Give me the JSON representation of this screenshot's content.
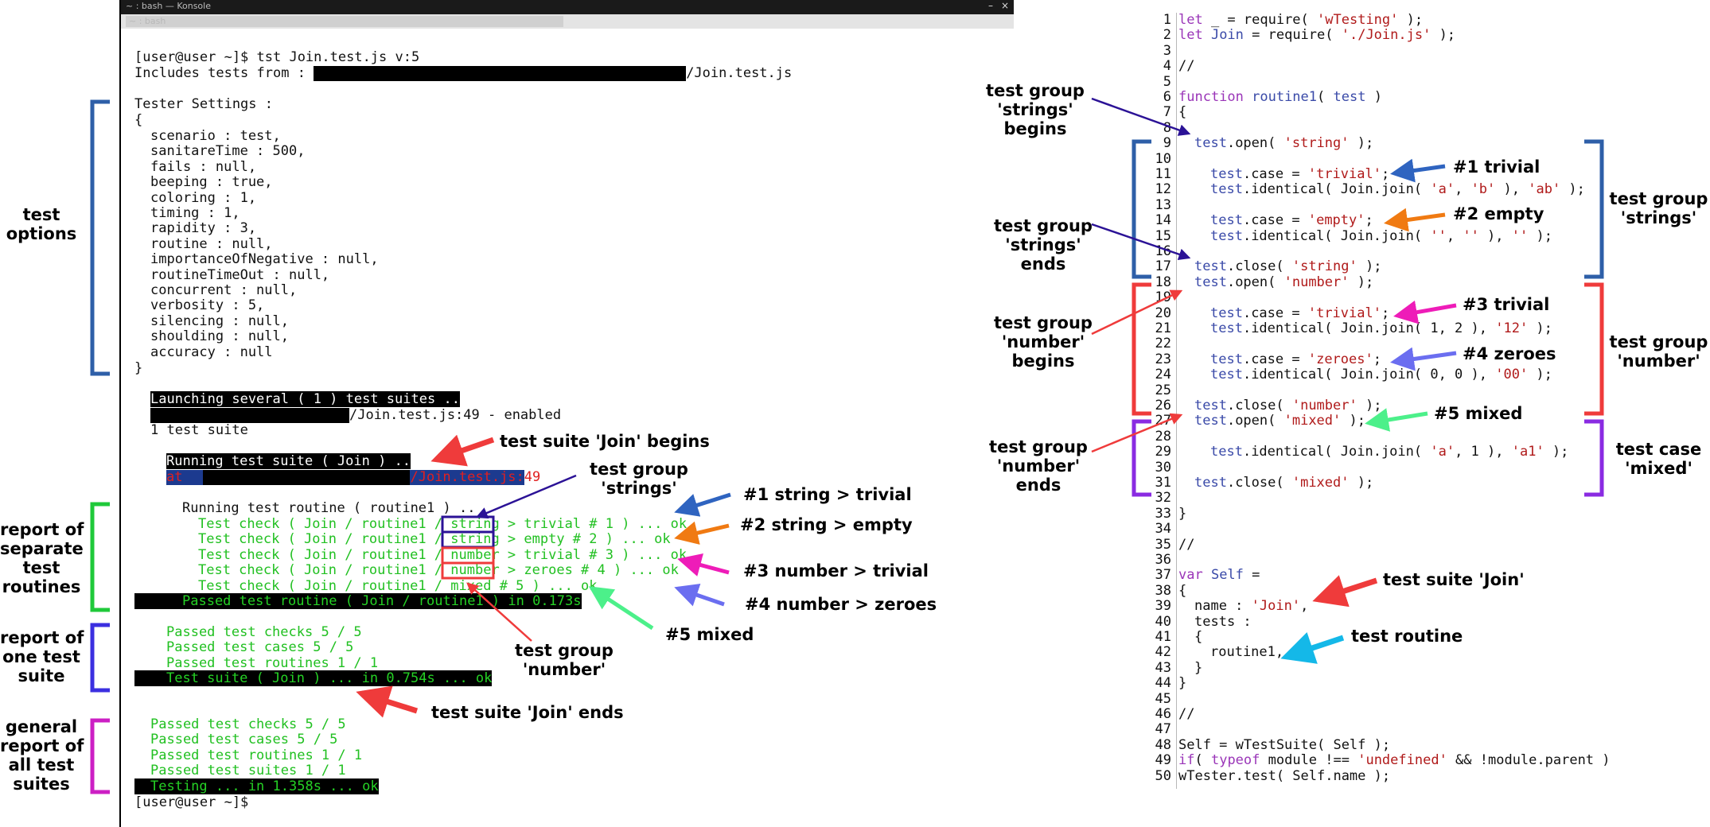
{
  "terminal": {
    "window_title": "~ : bash — Konsole",
    "tab_title": "~ : bash",
    "prompt_cmd": "[user@user ~]$ tst Join.test.js v:5",
    "includes_prefix": "Includes tests from :",
    "includes_suffix": "/Join.test.js",
    "settings_header": "Tester Settings :",
    "open_brace": "{",
    "close_brace": "}",
    "settings": [
      "scenario : test,",
      "sanitareTime : 500,",
      "fails : null,",
      "beeping : true,",
      "coloring : 1,",
      "timing : 1,",
      "rapidity : 3,",
      "routine : null,",
      "importanceOfNegative : null,",
      "routineTimeOut : null,",
      "concurrent : null,",
      "verbosity : 5,",
      "silencing : null,",
      "shoulding : null,",
      "accuracy : null"
    ],
    "launching": "Launching several ( 1 ) test suites ..",
    "enabled_suffix": "/Join.test.js:49 - enabled",
    "one_suite": "1 test suite",
    "running_suite": "Running test suite ( Join ) ..",
    "at_prefix": "at",
    "at_suffix": "/Join.test.js:49",
    "running_routine": "Running test routine ( routine1 ) ..",
    "checks": [
      "Test check ( Join / routine1 / string > trivial # 1 ) ... ok",
      "Test check ( Join / routine1 / string > empty # 2 ) ... ok",
      "Test check ( Join / routine1 / number > trivial # 3 ) ... ok",
      "Test check ( Join / routine1 / number > zeroes # 4 ) ... ok",
      "Test check ( Join / routine1 / mixed # 5 ) ... ok"
    ],
    "passed_routine": "Passed test routine ( Join / routine1 ) in 0.173s",
    "suite_report": [
      "Passed test checks 5 / 5",
      "Passed test cases 5 / 5",
      "Passed test routines 1 / 1"
    ],
    "suite_done": "Test suite ( Join ) ... in 0.754s ... ok",
    "general_report": [
      "Passed test checks 5 / 5",
      "Passed test cases 5 / 5",
      "Passed test routines 1 / 1",
      "Passed test suites 1 / 1"
    ],
    "testing_done": "Testing ... in 1.358s ... ok",
    "final_prompt": "[user@user ~]$"
  },
  "left_labels": {
    "test_options": "test\noptions",
    "separate_routines": "report of\nseparate\ntest\nroutines",
    "one_suite": "report of\none test\nsuite",
    "all_suites": "general\nreport of\nall test\nsuites"
  },
  "mid_labels": {
    "suite_begins": "test suite 'Join' begins",
    "group_strings": "test group\n'strings'",
    "c1": "#1 string > trivial",
    "c2": "#2 string > empty",
    "c3": "#3 number > trivial",
    "c4": "#4 number > zeroes",
    "c5": "#5 mixed",
    "group_number": "test group\n'number'",
    "suite_ends": "test suite 'Join' ends"
  },
  "code": {
    "line_numbers": [
      "1",
      "2",
      "3",
      "4",
      "5",
      "6",
      "7",
      "8",
      "9",
      "10",
      "11",
      "12",
      "13",
      "14",
      "15",
      "16",
      "17",
      "18",
      "19",
      "20",
      "21",
      "22",
      "23",
      "24",
      "25",
      "26",
      "27",
      "28",
      "29",
      "30",
      "31",
      "32",
      "33",
      "34",
      "35",
      "36",
      "37",
      "38",
      "39",
      "40",
      "41",
      "42",
      "43",
      "44",
      "45",
      "46",
      "47",
      "48",
      "49",
      "50"
    ],
    "l1": [
      "let",
      " _ = require( ",
      "'wTesting'",
      " );"
    ],
    "l2": [
      "let ",
      "Join",
      " = require( ",
      "'./Join.js'",
      " );"
    ],
    "l4": "//",
    "l6": [
      "function ",
      "routine1",
      "( ",
      "test",
      " )"
    ],
    "l7": "{",
    "l9": [
      "test",
      ".open( ",
      "'string'",
      " );"
    ],
    "l11": [
      "test",
      ".case = ",
      "'trivial'",
      ";"
    ],
    "l12": [
      "test",
      ".identical( Join.join( ",
      "'a'",
      ", ",
      "'b'",
      " ), ",
      "'ab'",
      " );"
    ],
    "l14": [
      "test",
      ".case = ",
      "'empty'",
      ";"
    ],
    "l15": [
      "test",
      ".identical( Join.join( ",
      "''",
      ", ",
      "''",
      " ), ",
      "''",
      " );"
    ],
    "l17": [
      "test",
      ".close( ",
      "'string'",
      " );"
    ],
    "l18": [
      "test",
      ".open( ",
      "'number'",
      " );"
    ],
    "l20": [
      "test",
      ".case = ",
      "'trivial'",
      ";"
    ],
    "l21": [
      "test",
      ".identical( Join.join( 1, 2 ), ",
      "'12'",
      " );"
    ],
    "l23": [
      "test",
      ".case = ",
      "'zeroes'",
      ";"
    ],
    "l24": [
      "test",
      ".identical( Join.join( 0, 0 ), ",
      "'00'",
      " );"
    ],
    "l26": [
      "test",
      ".close( ",
      "'number'",
      " );"
    ],
    "l27": [
      "test",
      ".open( ",
      "'mixed'",
      " );"
    ],
    "l29": [
      "test",
      ".identical( Join.join( ",
      "'a'",
      ", 1 ), ",
      "'a1'",
      " );"
    ],
    "l31": [
      "test",
      ".close( ",
      "'mixed'",
      " );"
    ],
    "l33": "}",
    "l35": "//",
    "l37": [
      "var ",
      "Self",
      " ="
    ],
    "l38": "{",
    "l39": [
      "name : ",
      "'Join'",
      ","
    ],
    "l40": "tests :",
    "l41": "{",
    "l42": "routine1,",
    "l43": "}",
    "l44": "}",
    "l46": "//",
    "l48": "Self = wTestSuite( Self );",
    "l49": [
      "if",
      "( ",
      "typeof",
      " module !== ",
      "'undefined'",
      " && !module.parent )"
    ],
    "l50": "wTester.test( Self.name );"
  },
  "right_labels": {
    "strings_begins": "test group\n'strings'\nbegins",
    "strings_ends": "test group\n'strings'\nends",
    "number_begins": "test group\n'number'\nbegins",
    "number_ends": "test group\n'number'\nends",
    "c1": "#1 trivial",
    "c2": "#2 empty",
    "c3": "#3 trivial",
    "c4": "#4 zeroes",
    "c5": "#5 mixed",
    "suite": "test suite 'Join'",
    "routine": "test routine",
    "group_strings": "test group\n'strings'",
    "group_number": "test group\n'number'",
    "case_mixed": "test case\n'mixed'"
  },
  "colors": {
    "blue_bracket": "#2e5fa8",
    "green_bracket": "#1fc93a",
    "violet_bracket": "#3b2fe0",
    "magenta_bracket": "#cc1fc4",
    "red_arrow": "#ef3b3b",
    "orange_arrow": "#f07a12",
    "pink_arrow": "#ee1cb8",
    "periwinkle_arrow": "#6b6ef0",
    "mint_arrow": "#4cf08a",
    "cyan_arrow": "#14b8e8",
    "indigo_arrow": "#2b1296"
  }
}
